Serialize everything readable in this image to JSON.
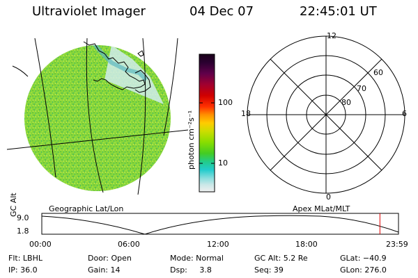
{
  "header": {
    "instrument": "Ultraviolet Imager",
    "date": "04 Dec 07",
    "time": "22:45:01 UT"
  },
  "colorbar": {
    "unit_label": "photon cm⁻²s⁻¹",
    "tick_labels": [
      "100",
      "10"
    ],
    "tick_values": [
      100,
      10
    ],
    "scale": "log",
    "colors_top_to_bottom": [
      "#1a001a",
      "#2a0030",
      "#60004a",
      "#a00030",
      "#d00000",
      "#ff3000",
      "#ff9000",
      "#ffcc00",
      "#ccdd00",
      "#88dd00",
      "#44cc22",
      "#22cc88",
      "#22cccc",
      "#88dddd",
      "#cce8e8",
      "#f0f0f0"
    ]
  },
  "map": {
    "label": "Geographic Lat/Lon",
    "fill_color": "#88d63a"
  },
  "polar": {
    "label": "Apex MLat/MLT",
    "mlt_labels": {
      "top": "12",
      "right": "6",
      "bottom": "0",
      "left": "18"
    },
    "mlat_labels": [
      "60",
      "70",
      "80"
    ]
  },
  "timeline": {
    "ylabel": "GC Alt",
    "ytick_labels": [
      "9.0",
      "1.8"
    ],
    "xtick_labels": [
      "00:00",
      "06:00",
      "12:00",
      "18:00",
      "23:59"
    ],
    "marker_color": "#e00000",
    "current_time_hours": 22.75
  },
  "info": {
    "flt": "Flt: LBHL",
    "door": "Door: Open",
    "mode": "Mode: Normal",
    "gc_alt": "GC Alt: 5.2 Re",
    "glat": "GLat: −40.9",
    "ip": "IP: 36.0",
    "gain": "Gain: 14",
    "dsp": "Dsp:     3.8",
    "seq": "Seq: 39",
    "glon": "GLon: 276.0"
  }
}
